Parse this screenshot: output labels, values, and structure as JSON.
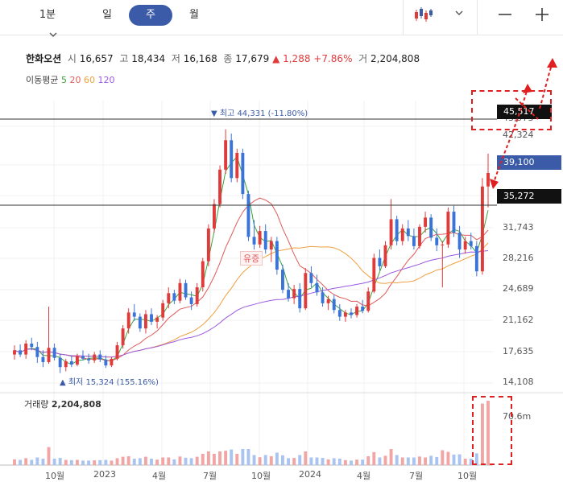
{
  "toolbar": {
    "interval": "1분",
    "tabs": [
      "일",
      "주",
      "월"
    ],
    "active_tab": "주",
    "chart_type_icon": "candlestick-icon",
    "minimize_icon": "minus-icon",
    "add_icon": "plus-icon"
  },
  "stock": {
    "name": "한화오션",
    "open_label": "시",
    "open": "16,657",
    "high_label": "고",
    "high": "18,434",
    "low_label": "저",
    "low": "16,168",
    "close_label": "종",
    "close": "17,679",
    "change": "▲ 1,288",
    "change_pct": "+7.86%",
    "volume_label": "거",
    "volume": "2,204,808"
  },
  "ma_legend": {
    "label": "이동평균",
    "periods": [
      {
        "value": "5",
        "color": "#3ba33b"
      },
      {
        "value": "20",
        "color": "#e05a5a"
      },
      {
        "value": "60",
        "color": "#f0a040"
      },
      {
        "value": "120",
        "color": "#9b59e0"
      }
    ]
  },
  "chart_data": {
    "type": "candlestick",
    "y_ticks": [
      "45,517",
      "43,973",
      "42,324",
      "39,100",
      "35,272",
      "31,743",
      "28,216",
      "24,689",
      "21,162",
      "17,635",
      "14,108"
    ],
    "y_tick_values": [
      45517,
      43973,
      42324,
      39100,
      35272,
      31743,
      28216,
      24689,
      21162,
      17635,
      14108
    ],
    "price_tags": [
      {
        "label": "45,517",
        "style": "dark"
      },
      {
        "label": "39,100",
        "style": "blue"
      },
      {
        "label": "35,272",
        "style": "dark"
      }
    ],
    "hlines": [
      45517,
      35272
    ],
    "x_labels": [
      "10월",
      "2023",
      "4월",
      "7월",
      "10월",
      "2024",
      "4월",
      "7월",
      "10월"
    ],
    "annotations": {
      "max": "▼ 최고 44,331 (-11.80%)",
      "min": "▲ 최저 15,324 (155.16%)",
      "note": "유증"
    },
    "volume_label": "거래량",
    "volume_value": "2,204,808",
    "volume_axis": "70.6m",
    "ohlc": [
      [
        17.5,
        18.6,
        16.9,
        18.0
      ],
      [
        18.0,
        18.7,
        17.2,
        17.5
      ],
      [
        17.5,
        19.2,
        17.0,
        18.8
      ],
      [
        18.8,
        19.5,
        18.0,
        18.4
      ],
      [
        18.4,
        19.0,
        16.5,
        17.2
      ],
      [
        17.2,
        18.0,
        16.0,
        16.6
      ],
      [
        16.6,
        23.2,
        16.4,
        18.3
      ],
      [
        18.3,
        18.8,
        16.8,
        17.1
      ],
      [
        17.1,
        17.6,
        15.3,
        16.0
      ],
      [
        16.0,
        17.0,
        15.5,
        16.7
      ],
      [
        16.7,
        17.4,
        16.0,
        16.3
      ],
      [
        16.3,
        17.6,
        16.1,
        17.3
      ],
      [
        17.3,
        18.0,
        16.8,
        17.0
      ],
      [
        17.0,
        17.6,
        16.4,
        16.8
      ],
      [
        16.8,
        17.8,
        16.5,
        17.5
      ],
      [
        17.5,
        18.0,
        16.6,
        16.9
      ],
      [
        16.9,
        17.4,
        15.9,
        16.2
      ],
      [
        16.2,
        17.2,
        16.0,
        17.0
      ],
      [
        17.0,
        19.0,
        16.8,
        18.6
      ],
      [
        18.6,
        21.0,
        18.2,
        20.6
      ],
      [
        20.6,
        23.0,
        20.0,
        22.5
      ],
      [
        22.5,
        23.5,
        21.5,
        22.0
      ],
      [
        22.0,
        22.4,
        20.2,
        20.6
      ],
      [
        20.6,
        22.8,
        20.0,
        22.3
      ],
      [
        22.3,
        23.0,
        21.0,
        21.4
      ],
      [
        21.4,
        22.2,
        20.6,
        21.9
      ],
      [
        21.9,
        24.0,
        21.5,
        23.6
      ],
      [
        23.6,
        25.5,
        23.0,
        24.8
      ],
      [
        24.8,
        25.2,
        23.5,
        23.9
      ],
      [
        23.9,
        26.5,
        23.6,
        26.0
      ],
      [
        26.0,
        26.4,
        24.0,
        24.3
      ],
      [
        24.3,
        25.0,
        22.8,
        23.5
      ],
      [
        23.5,
        26.0,
        23.2,
        25.5
      ],
      [
        25.5,
        29.0,
        25.0,
        28.6
      ],
      [
        28.6,
        33.0,
        28.0,
        32.5
      ],
      [
        32.5,
        36.0,
        32.0,
        35.4
      ],
      [
        35.4,
        40.0,
        35.0,
        39.5
      ],
      [
        39.5,
        44.3,
        39.0,
        43.0
      ],
      [
        43.0,
        43.8,
        38.0,
        38.5
      ],
      [
        38.5,
        42.0,
        38.0,
        41.5
      ],
      [
        41.5,
        42.0,
        36.0,
        36.6
      ],
      [
        36.6,
        37.0,
        31.0,
        31.5
      ],
      [
        31.5,
        33.5,
        30.0,
        30.6
      ],
      [
        30.6,
        32.8,
        30.2,
        32.2
      ],
      [
        32.2,
        33.0,
        29.5,
        30.0
      ],
      [
        30.0,
        31.5,
        28.5,
        31.0
      ],
      [
        31.0,
        31.5,
        27.0,
        27.6
      ],
      [
        27.6,
        28.2,
        24.8,
        25.2
      ],
      [
        25.2,
        26.0,
        23.8,
        24.2
      ],
      [
        24.2,
        25.8,
        23.5,
        25.3
      ],
      [
        25.3,
        26.0,
        22.5,
        23.0
      ],
      [
        23.0,
        27.8,
        22.8,
        27.2
      ],
      [
        27.2,
        28.0,
        25.5,
        26.0
      ],
      [
        26.0,
        27.0,
        24.5,
        24.9
      ],
      [
        24.9,
        25.5,
        23.2,
        23.6
      ],
      [
        23.6,
        24.5,
        22.8,
        24.1
      ],
      [
        24.1,
        24.6,
        22.4,
        22.8
      ],
      [
        22.8,
        23.5,
        21.5,
        22.0
      ],
      [
        22.0,
        22.8,
        21.4,
        22.5
      ],
      [
        22.5,
        23.0,
        21.8,
        22.2
      ],
      [
        22.2,
        23.5,
        21.9,
        23.2
      ],
      [
        23.2,
        24.0,
        22.4,
        22.7
      ],
      [
        22.7,
        25.5,
        22.5,
        25.0
      ],
      [
        25.0,
        29.5,
        24.8,
        29.0
      ],
      [
        29.0,
        30.0,
        27.5,
        28.0
      ],
      [
        28.0,
        31.0,
        27.8,
        30.5
      ],
      [
        30.5,
        36.0,
        30.0,
        33.6
      ],
      [
        33.6,
        34.0,
        30.5,
        31.0
      ],
      [
        31.0,
        33.0,
        30.5,
        32.5
      ],
      [
        32.5,
        33.5,
        31.0,
        31.6
      ],
      [
        31.6,
        32.5,
        30.0,
        30.4
      ],
      [
        30.4,
        33.0,
        30.1,
        32.7
      ],
      [
        32.7,
        34.5,
        32.0,
        33.8
      ],
      [
        33.8,
        34.2,
        31.0,
        31.4
      ],
      [
        31.4,
        32.5,
        29.8,
        30.5
      ],
      [
        30.5,
        31.0,
        25.5,
        30.6
      ],
      [
        30.6,
        35.0,
        30.2,
        34.5
      ],
      [
        34.5,
        35.2,
        31.5,
        32.0
      ],
      [
        32.0,
        32.8,
        29.0,
        30.0
      ],
      [
        30.0,
        31.5,
        29.5,
        31.0
      ],
      [
        31.0,
        32.0,
        30.0,
        30.4
      ],
      [
        30.4,
        31.0,
        26.8,
        27.4
      ],
      [
        27.4,
        38.5,
        27.0,
        37.5
      ],
      [
        37.5,
        41.4,
        35.0,
        39.1
      ]
    ]
  }
}
